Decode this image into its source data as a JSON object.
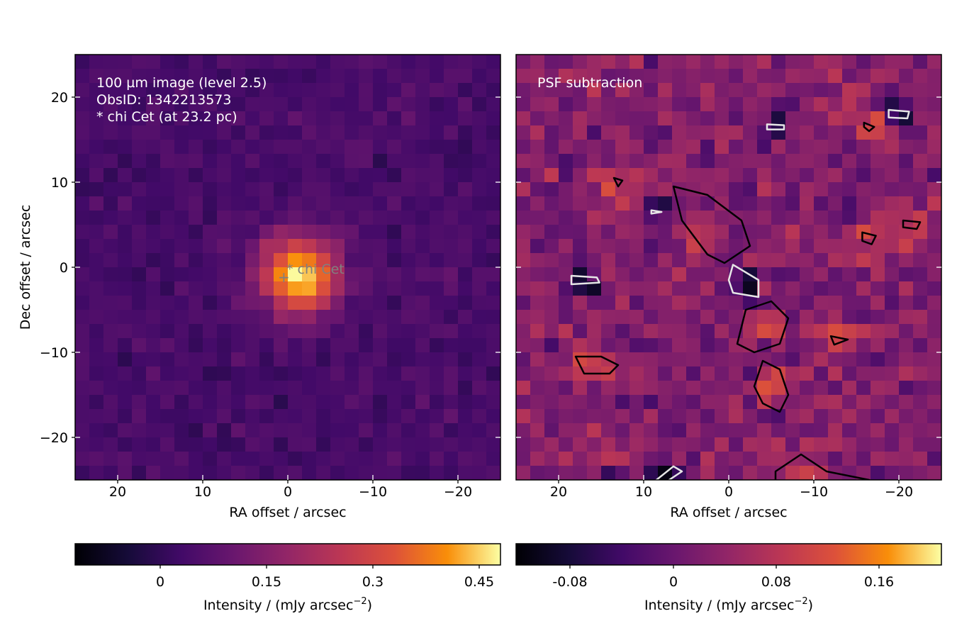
{
  "figure": {
    "left_panel": {
      "annotation_lines": [
        "100 µm image (level 2.5)",
        "ObsID: 1342213573",
        "* chi Cet (at 23.2 pc)"
      ],
      "star_label": "* chi Cet",
      "star_marker": "+",
      "xlabel": "RA offset / arcsec",
      "ylabel": "Dec offset / arcsec",
      "x_ticks": [
        "20",
        "10",
        "0",
        "−10",
        "−20"
      ],
      "y_ticks": [
        "20",
        "10",
        "0",
        "−10",
        "−20"
      ],
      "colorbar": {
        "label": "Intensity / (mJy arcsec",
        "label_sup": "−2",
        "label_end": ")",
        "ticks": [
          "0",
          "0.15",
          "0.3",
          "0.45"
        ]
      }
    },
    "right_panel": {
      "annotation": "PSF subtraction",
      "xlabel": "RA offset / arcsec",
      "x_ticks": [
        "20",
        "10",
        "0",
        "−10",
        "−20"
      ],
      "colorbar": {
        "label": "Intensity / (mJy arcsec",
        "label_sup": "−2",
        "label_end": ")",
        "ticks": [
          "-0.08",
          "0",
          "0.08",
          "0.16"
        ]
      }
    }
  },
  "chart_data": [
    {
      "type": "heatmap",
      "title": "",
      "annotations": [
        "100 µm image (level 2.5)",
        "ObsID: 1342213573",
        "* chi Cet (at 23.2 pc)"
      ],
      "xlabel": "RA offset / arcsec",
      "ylabel": "Dec offset / arcsec",
      "xlim": [
        25,
        -25
      ],
      "ylim": [
        -25,
        25
      ],
      "x_ticks": [
        20,
        10,
        0,
        -10,
        -20
      ],
      "y_ticks": [
        20,
        10,
        0,
        -10,
        -20
      ],
      "colormap": "inferno",
      "grid": false,
      "star": {
        "label": "* chi Cet",
        "ra_offset": 0.5,
        "dec_offset": -1.0
      },
      "source_peak": {
        "ra_offset": -1.5,
        "dec_offset": -1.0,
        "intensity": 0.47
      },
      "color_range": [
        -0.15,
        0.48
      ],
      "colorbar_label": "Intensity / (mJy arcsec^-2)",
      "colorbar_ticks": [
        0,
        0.15,
        0.3,
        0.45
      ]
    },
    {
      "type": "heatmap",
      "title": "",
      "annotations": [
        "PSF subtraction"
      ],
      "xlabel": "RA offset / arcsec",
      "xlim": [
        25,
        -25
      ],
      "ylim": [
        -25,
        25
      ],
      "x_ticks": [
        20,
        10,
        0,
        -10,
        -20
      ],
      "colormap": "inferno",
      "grid": false,
      "contours": [
        {
          "level": "positive",
          "color": "black",
          "centers": [
            [
              3.5,
              2.5
            ],
            [
              -4,
              -7
            ],
            [
              -5,
              -14
            ],
            [
              16,
              -11.5
            ],
            [
              -8.5,
              -24
            ],
            [
              -16.5,
              3.5
            ],
            [
              -16.5,
              16.5
            ],
            [
              -21.5,
              5
            ],
            [
              -13,
              -8.5
            ],
            [
              13,
              10
            ]
          ]
        },
        {
          "level": "negative",
          "color": "white",
          "centers": [
            [
              -2,
              -1.5
            ],
            [
              17,
              -1.5
            ],
            [
              -5.5,
              16.5
            ],
            [
              8.5,
              6.5
            ],
            [
              -20,
              18
            ],
            [
              7.5,
              -24
            ]
          ]
        }
      ],
      "color_range": [
        -0.12,
        0.22
      ],
      "colorbar_label": "Intensity / (mJy arcsec^-2)",
      "colorbar_ticks": [
        -0.08,
        0,
        0.08,
        0.16
      ]
    }
  ]
}
